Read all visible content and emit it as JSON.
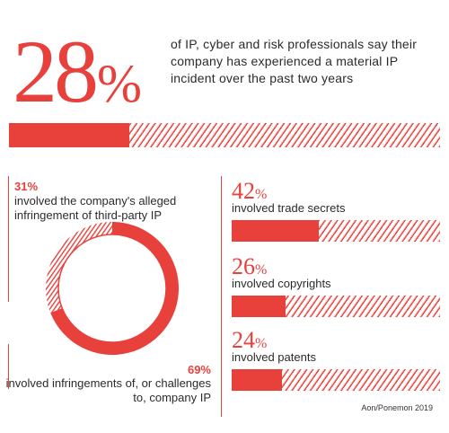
{
  "headline": {
    "number": "28",
    "sign": "%",
    "value": 28,
    "text": "of IP, cyber and risk professionals say their company has experienced a material IP incident over the past two years"
  },
  "donut": {
    "p31": "31%",
    "p31_label": "involved the company's alleged infringement of third-party IP",
    "p69": "69%",
    "p69_label": "involved infringements of, or challenges to, company IP"
  },
  "stats": [
    {
      "number": "42",
      "sign": "%",
      "label": "involved trade secrets"
    },
    {
      "number": "26",
      "sign": "%",
      "label": "involved copyrights"
    },
    {
      "number": "24",
      "sign": "%",
      "label": "involved patents"
    }
  ],
  "source": "Aon/Ponemon 2019",
  "colors": {
    "accent": "#e8413c",
    "hatch_light": "#f6cfcc",
    "text": "#2b2b2b"
  },
  "chart_data": [
    {
      "type": "bar",
      "values": [
        28
      ],
      "ylim": [
        0,
        100
      ]
    },
    {
      "type": "pie",
      "categories": [
        "involved the company's alleged infringement of third-party IP",
        "involved infringements of, or challenges to, company IP"
      ],
      "values": [
        31,
        69
      ]
    },
    {
      "type": "bar",
      "categories": [
        "involved trade secrets",
        "involved copyrights",
        "involved patents"
      ],
      "values": [
        42,
        26,
        24
      ],
      "ylim": [
        0,
        100
      ]
    }
  ]
}
